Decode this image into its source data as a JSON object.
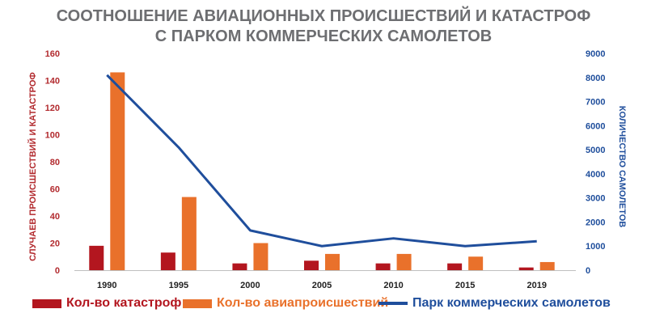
{
  "chart_data": {
    "type": "bar+line",
    "title": [
      "СООТНОШЕНИЕ АВИАЦИОННЫХ ПРОИСШЕСТВИЙ И КАТАСТРОФ",
      "С ПАРКОМ КОММЕРЧЕСКИХ САМОЛЕТОВ"
    ],
    "categories": [
      "1990",
      "1995",
      "2000",
      "2005",
      "2010",
      "2015",
      "2019"
    ],
    "series": [
      {
        "name": "Кол-во катастроф",
        "kind": "bar",
        "axis": "left",
        "color": "#b3161f",
        "values": [
          18,
          13,
          5,
          7,
          5,
          5,
          2
        ]
      },
      {
        "name": "Кол-во авиапроисшествий",
        "kind": "bar",
        "axis": "left",
        "color": "#e9712b",
        "values": [
          146,
          54,
          20,
          12,
          12,
          10,
          6
        ]
      },
      {
        "name": "Парк коммерческих самолетов",
        "kind": "line",
        "axis": "right",
        "color": "#1f4e9c",
        "values": [
          8100,
          5100,
          1650,
          1000,
          1320,
          1000,
          1200
        ]
      }
    ],
    "y_left": {
      "label": "СЛУЧАЕВ ПРОИСШЕСТВИЙ И КАТАСТРОФ",
      "range": [
        0,
        160
      ],
      "ticks": [
        "0",
        "20",
        "40",
        "60",
        "80",
        "100",
        "120",
        "140",
        "160"
      ],
      "color": "#b22a2e"
    },
    "y_right": {
      "label": "КОЛИЧЕСТВО САМОЛЕТОВ",
      "range": [
        0,
        9000
      ],
      "ticks": [
        "0",
        "1000",
        "2000",
        "3000",
        "4000",
        "5000",
        "6000",
        "7000",
        "8000",
        "9000"
      ],
      "color": "#1f4e9c"
    },
    "grid": false,
    "legend_position": "bottom"
  }
}
